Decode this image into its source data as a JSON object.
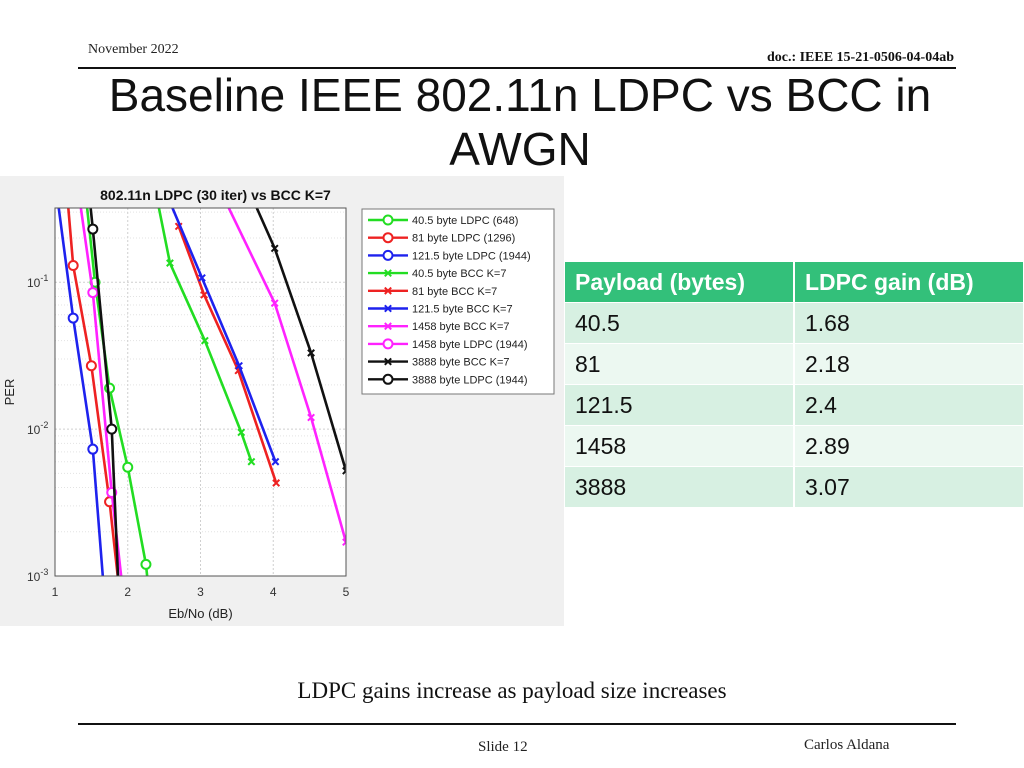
{
  "header": {
    "date": "November 2022",
    "doc_id": "doc.: IEEE 15-21-0506-04-04ab"
  },
  "title": "Baseline IEEE 802.11n LDPC vs BCC in AWGN",
  "chart_data": {
    "type": "line",
    "title": "802.11n LDPC (30 iter) vs BCC K=7",
    "xlabel": "Eb/No (dB)",
    "ylabel": "PER",
    "xlim": [
      1,
      5
    ],
    "ylim": [
      0.001,
      0.5
    ],
    "yscale": "log",
    "grid": true,
    "legend_position": "top-right",
    "x_ticks": [
      "1",
      "2",
      "3",
      "4",
      "5"
    ],
    "y_ticks": [
      {
        "value": 0.1,
        "base": "10",
        "exp": "-1"
      },
      {
        "value": 0.01,
        "base": "10",
        "exp": "-2"
      },
      {
        "value": 0.001,
        "base": "10",
        "exp": "-3"
      }
    ],
    "series": [
      {
        "name": "40.5 byte LDPC (648)",
        "color": "#22dd22",
        "marker": "o",
        "x": [
          1.4,
          1.55,
          1.75,
          2.0,
          2.25,
          2.35
        ],
        "y": [
          0.5,
          0.1,
          0.019,
          0.0055,
          0.0012,
          0.0004
        ]
      },
      {
        "name": "81 byte LDPC (1296)",
        "color": "#ee2222",
        "marker": "o",
        "x": [
          1.15,
          1.25,
          1.5,
          1.75,
          1.95
        ],
        "y": [
          0.5,
          0.13,
          0.027,
          0.0032,
          0.0004
        ]
      },
      {
        "name": "121.5 byte LDPC (1944)",
        "color": "#1e22ee",
        "marker": "o",
        "x": [
          1.0,
          1.25,
          1.52,
          1.72
        ],
        "y": [
          0.5,
          0.057,
          0.0073,
          0.0004
        ]
      },
      {
        "name": "40.5 byte BCC K=7",
        "color": "#22dd22",
        "marker": "x",
        "x": [
          2.35,
          2.58,
          3.06,
          3.56,
          3.7
        ],
        "y": [
          0.5,
          0.135,
          0.04,
          0.0095,
          0.006
        ]
      },
      {
        "name": "81 byte BCC K=7",
        "color": "#ee2222",
        "marker": "x",
        "x": [
          2.7,
          3.05,
          3.52,
          4.04
        ],
        "y": [
          0.24,
          0.082,
          0.025,
          0.0043
        ]
      },
      {
        "name": "121.5 byte BCC K=7",
        "color": "#1e22ee",
        "marker": "x",
        "x": [
          2.45,
          3.02,
          3.53,
          4.03
        ],
        "y": [
          0.5,
          0.107,
          0.027,
          0.006
        ]
      },
      {
        "name": "1458 byte BCC K=7",
        "color": "#ff22ff",
        "marker": "x",
        "x": [
          3.2,
          4.02,
          4.52,
          5.0
        ],
        "y": [
          0.5,
          0.072,
          0.012,
          0.0017
        ]
      },
      {
        "name": "1458 byte LDPC (1944)",
        "color": "#ff22ff",
        "marker": "o",
        "x": [
          1.3,
          1.52,
          1.78,
          2.0
        ],
        "y": [
          0.5,
          0.085,
          0.0037,
          0.0004
        ]
      },
      {
        "name": "3888 byte BCC K=7",
        "color": "#111111",
        "marker": "x",
        "x": [
          3.6,
          4.02,
          4.52,
          5.0
        ],
        "y": [
          0.5,
          0.17,
          0.033,
          0.0052
        ]
      },
      {
        "name": "3888 byte LDPC (1944)",
        "color": "#111111",
        "marker": "o",
        "x": [
          1.45,
          1.52,
          1.78,
          1.9
        ],
        "y": [
          0.5,
          0.23,
          0.01,
          0.0004
        ]
      }
    ]
  },
  "table": {
    "headers": [
      "Payload (bytes)",
      "LDPC gain (dB)"
    ],
    "rows": [
      [
        "40.5",
        "1.68"
      ],
      [
        "81",
        "2.18"
      ],
      [
        "121.5",
        "2.4"
      ],
      [
        "1458",
        "2.89"
      ],
      [
        "3888",
        "3.07"
      ]
    ]
  },
  "caption": "LDPC gains increase as payload size increases",
  "footer": {
    "slide": "Slide 12",
    "author": "Carlos Aldana"
  }
}
